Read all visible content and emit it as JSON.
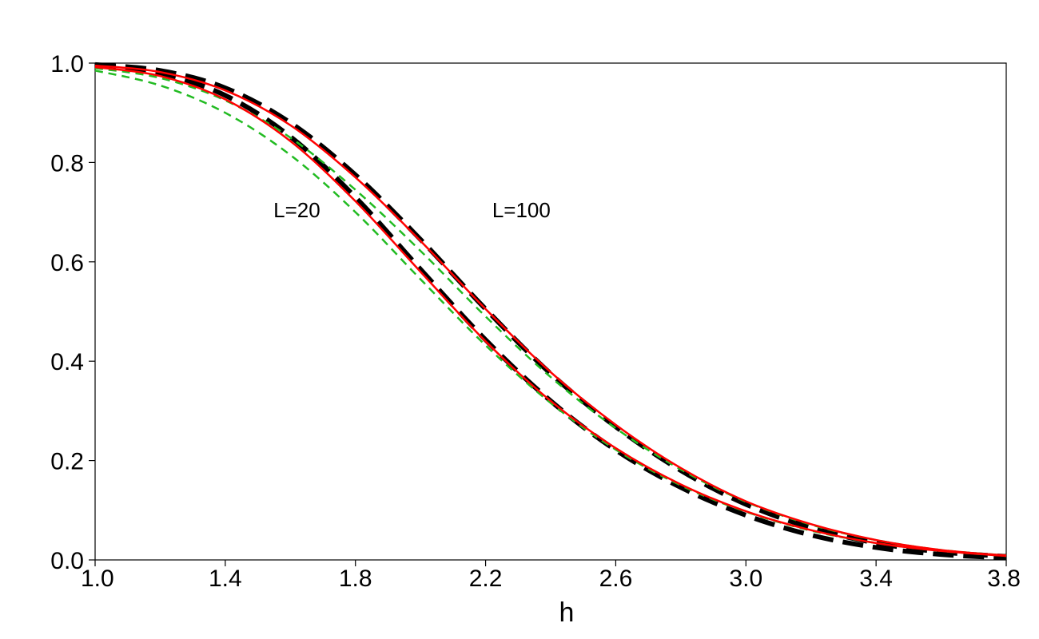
{
  "chart_data": {
    "type": "line",
    "title": "",
    "xlabel": "h",
    "ylabel": "",
    "xlim": [
      1.0,
      3.8
    ],
    "ylim": [
      0.0,
      1.0
    ],
    "xticks": [
      1.0,
      1.4,
      1.8,
      2.2,
      2.6,
      3.0,
      3.4,
      3.8
    ],
    "xtick_labels": [
      "1.0",
      "1.4",
      "1.8",
      "2.2",
      "2.6",
      "3.0",
      "3.4",
      "3.8"
    ],
    "yticks": [
      0.0,
      0.2,
      0.4,
      0.6,
      0.8,
      1.0
    ],
    "ytick_labels": [
      "0.0",
      "0.2",
      "0.4",
      "0.6",
      "0.8",
      "1.0"
    ],
    "grid": false,
    "legend": "none",
    "annotations": [
      {
        "text": "L=20",
        "x": 1.62,
        "y": 0.69
      },
      {
        "text": "L=100",
        "x": 2.31,
        "y": 0.69
      }
    ],
    "series": [
      {
        "group": "L=20",
        "style": "black-long-dash",
        "color": "#000000",
        "x": [
          1.0,
          1.2,
          1.4,
          1.6,
          1.8,
          2.0,
          2.2,
          2.4,
          2.6,
          2.8,
          3.0,
          3.2,
          3.4,
          3.6,
          3.8
        ],
        "y": [
          0.995,
          0.979,
          0.935,
          0.852,
          0.73,
          0.585,
          0.443,
          0.32,
          0.221,
          0.146,
          0.09,
          0.05,
          0.025,
          0.011,
          0.004
        ]
      },
      {
        "group": "L=20",
        "style": "red-solid",
        "color": "#ff0000",
        "x": [
          1.0,
          1.2,
          1.4,
          1.6,
          1.8,
          2.0,
          2.2,
          2.4,
          2.6,
          2.8,
          3.0,
          3.2,
          3.4,
          3.6,
          3.8
        ],
        "y": [
          0.992,
          0.974,
          0.927,
          0.843,
          0.722,
          0.58,
          0.44,
          0.32,
          0.225,
          0.152,
          0.098,
          0.06,
          0.034,
          0.018,
          0.008
        ]
      },
      {
        "group": "L=20",
        "style": "green-dash",
        "color": "#22bb22",
        "x": [
          1.0,
          1.2,
          1.4,
          1.6,
          1.8,
          2.0,
          2.2,
          2.4,
          2.6,
          2.8,
          3.0,
          3.2,
          3.4,
          3.6,
          3.8
        ],
        "y": [
          0.985,
          0.955,
          0.9,
          0.815,
          0.7,
          0.565,
          0.432,
          0.316,
          0.222,
          0.15,
          0.097,
          0.059,
          0.034,
          0.018,
          0.008
        ]
      },
      {
        "group": "L=100",
        "style": "black-long-dash",
        "color": "#000000",
        "x": [
          1.0,
          1.2,
          1.4,
          1.6,
          1.8,
          2.0,
          2.2,
          2.4,
          2.6,
          2.8,
          3.0,
          3.2,
          3.4,
          3.6,
          3.8
        ],
        "y": [
          0.997,
          0.985,
          0.95,
          0.88,
          0.775,
          0.645,
          0.505,
          0.375,
          0.268,
          0.18,
          0.112,
          0.065,
          0.034,
          0.016,
          0.007
        ]
      },
      {
        "group": "L=100",
        "style": "red-solid",
        "color": "#ff0000",
        "x": [
          1.0,
          1.2,
          1.4,
          1.6,
          1.8,
          2.0,
          2.2,
          2.4,
          2.6,
          2.8,
          3.0,
          3.2,
          3.4,
          3.6,
          3.8
        ],
        "y": [
          0.995,
          0.982,
          0.945,
          0.875,
          0.77,
          0.642,
          0.505,
          0.378,
          0.272,
          0.185,
          0.118,
          0.072,
          0.04,
          0.02,
          0.009
        ]
      },
      {
        "group": "L=100",
        "style": "green-dash",
        "color": "#22bb22",
        "x": [
          1.0,
          1.2,
          1.4,
          1.6,
          1.8,
          2.0,
          2.2,
          2.4,
          2.6,
          2.8,
          3.0,
          3.2,
          3.4,
          3.6,
          3.8
        ],
        "y": [
          0.99,
          0.97,
          0.925,
          0.85,
          0.745,
          0.622,
          0.49,
          0.368,
          0.265,
          0.182,
          0.117,
          0.071,
          0.04,
          0.02,
          0.009
        ]
      }
    ]
  }
}
